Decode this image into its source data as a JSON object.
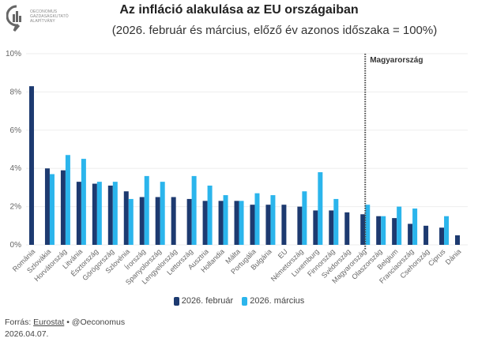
{
  "logo": {
    "icon": "oeconomus-logo-icon",
    "lines": [
      "OECONOMUS",
      "GAZDASÁGKUTATÓ",
      "ALAPÍTVÁNY"
    ]
  },
  "colors": {
    "feb": "#1d3a70",
    "mar": "#2bb5ec",
    "grid": "#eeeeee",
    "marker": "#444444"
  },
  "chart_data": {
    "type": "bar",
    "title": "Az infláció alakulása az EU országaiban",
    "subtitle": "(2026. február és március, előző év azonos időszaka = 100%)",
    "xlabel": "",
    "ylabel": "",
    "ylim": [
      0,
      10
    ],
    "yticks": [
      0,
      2,
      4,
      6,
      8,
      10
    ],
    "ytick_labels": [
      "0%",
      "2%",
      "4%",
      "6%",
      "8%",
      "10%"
    ],
    "grid": true,
    "legend_position": "bottom",
    "categories": [
      "Románia",
      "Szlovákia",
      "Horvátország",
      "Litvánia",
      "Észtország",
      "Görögország",
      "Szlovénia",
      "Írország",
      "Spanyolország",
      "Lengyelország",
      "Lettország",
      "Ausztria",
      "Hollandia",
      "Málta",
      "Portugália",
      "Bulgária",
      "EU",
      "Németország",
      "Luxemburg",
      "Finnország",
      "Svédország",
      "Magyarország",
      "Olaszország",
      "Belgium",
      "Franciaország",
      "Csehország",
      "Ciprus",
      "Dánia"
    ],
    "series": [
      {
        "name": "2026. február",
        "values": [
          8.3,
          4.0,
          3.9,
          3.3,
          3.2,
          3.1,
          2.8,
          2.5,
          2.5,
          2.5,
          2.4,
          2.3,
          2.3,
          2.3,
          2.1,
          2.1,
          2.1,
          2.0,
          1.8,
          1.8,
          1.7,
          1.6,
          1.5,
          1.4,
          1.1,
          1.0,
          0.9,
          0.5
        ]
      },
      {
        "name": "2026. március",
        "values": [
          null,
          3.7,
          4.7,
          4.5,
          3.3,
          3.3,
          2.4,
          3.6,
          3.3,
          null,
          3.6,
          3.1,
          2.6,
          2.3,
          2.7,
          2.6,
          null,
          2.8,
          3.8,
          2.4,
          null,
          2.1,
          1.5,
          2.0,
          1.9,
          null,
          1.5,
          null
        ]
      }
    ],
    "annotations": [
      {
        "category": "Magyarország",
        "text": "Magyarország",
        "style": "dotted-vertical-line"
      }
    ]
  },
  "footer": {
    "source_prefix": "Forrás: ",
    "source_link": "Eurostat",
    "separator": " • ",
    "handle": "@Oeconomus",
    "date": "2026.04.07."
  }
}
